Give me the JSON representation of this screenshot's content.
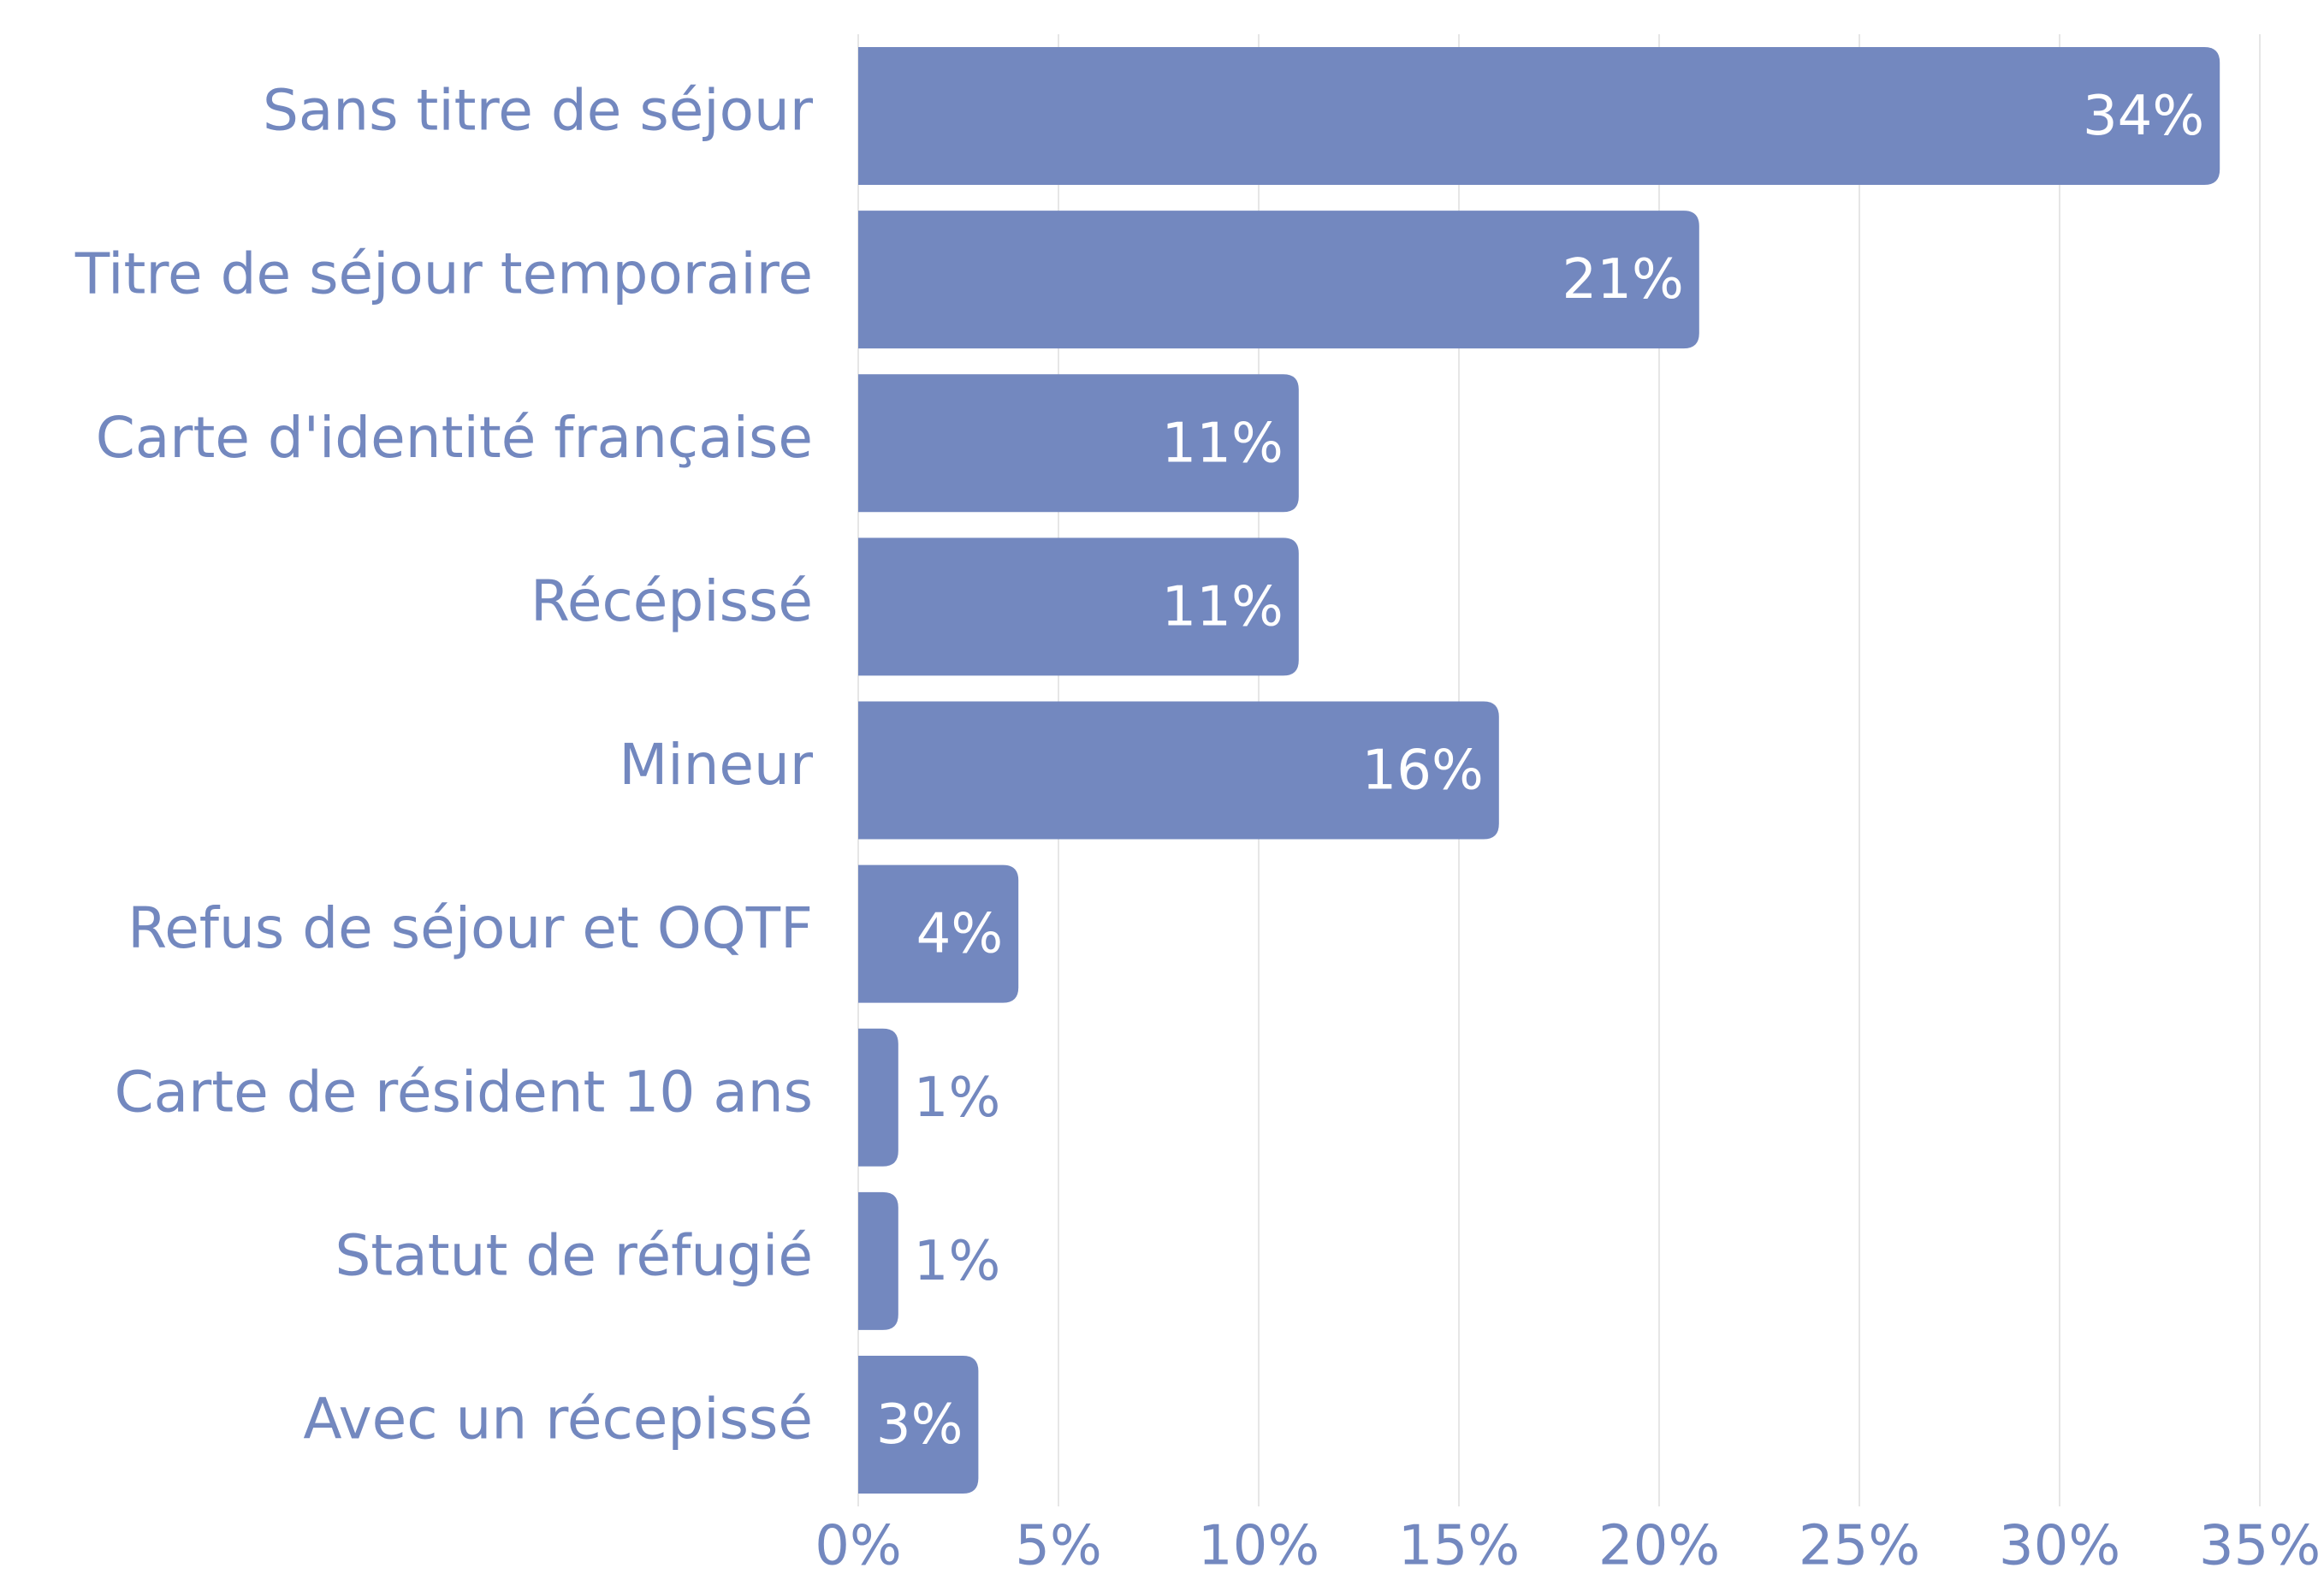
{
  "chart_data": {
    "type": "bar",
    "orientation": "horizontal",
    "categories": [
      "Sans titre de séjour",
      "Titre de séjour temporaire",
      "Carte d'identité française",
      "Récépissé",
      "Mineur",
      "Refus de séjour et OQTF",
      "Carte de résident 10 ans",
      "Statut de réfugié",
      "Avec un récepissé"
    ],
    "values": [
      34,
      21,
      11,
      11,
      16,
      4,
      1,
      1,
      3
    ],
    "value_labels": [
      "34%",
      "21%",
      "11%",
      "11%",
      "16%",
      "4%",
      "1%",
      "1%",
      "3%"
    ],
    "color": "#7388bf",
    "xlim": [
      0,
      35
    ],
    "xticks": [
      {
        "value": 0,
        "label": "0%"
      },
      {
        "value": 5,
        "label": "5%"
      },
      {
        "value": 10,
        "label": "10%"
      },
      {
        "value": 15,
        "label": "15%"
      },
      {
        "value": 20,
        "label": "20%"
      },
      {
        "value": 25,
        "label": "25%"
      },
      {
        "value": 30,
        "label": "30%"
      },
      {
        "value": 35,
        "label": "35%"
      }
    ],
    "grid": true
  }
}
